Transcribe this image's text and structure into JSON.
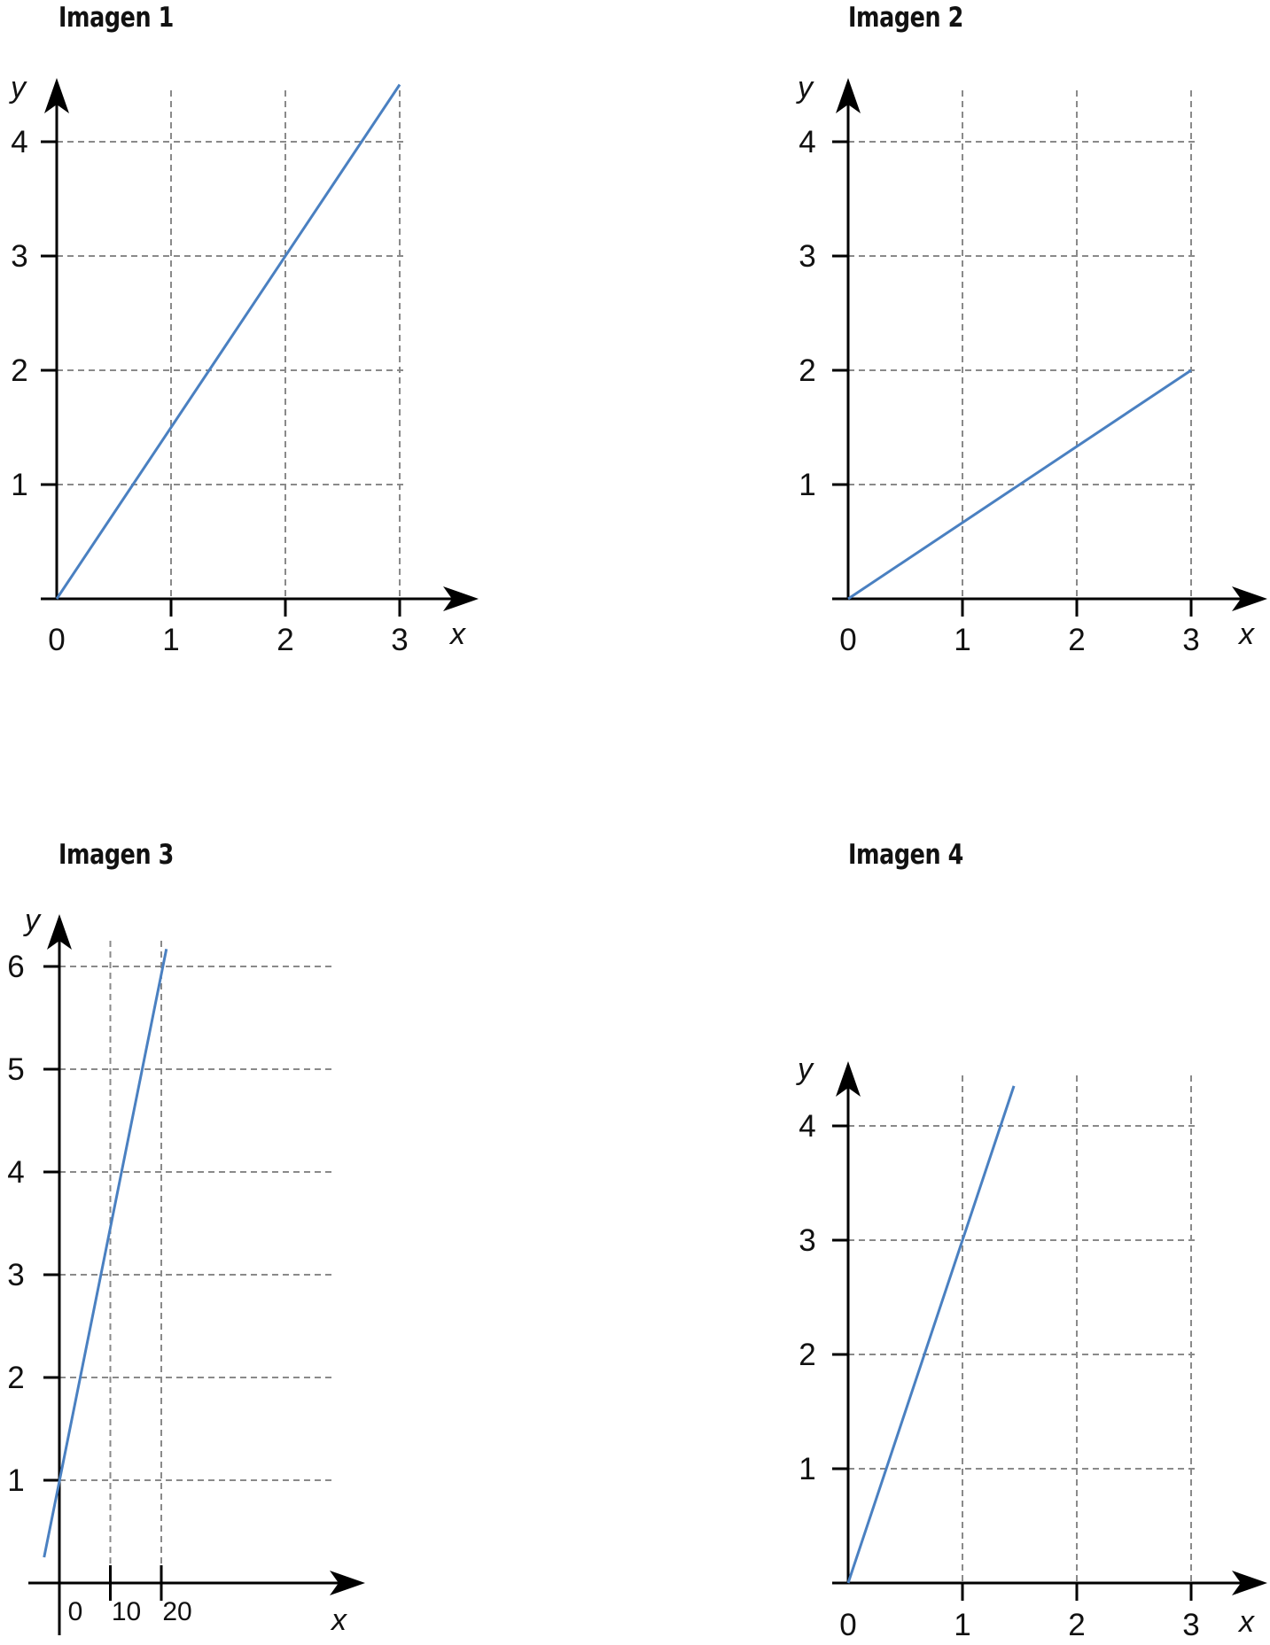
{
  "chart_data": [
    {
      "type": "line",
      "title": "Imagen 1",
      "xlabel": "x",
      "ylabel": "y",
      "xlim": [
        0,
        3
      ],
      "ylim": [
        0,
        4
      ],
      "x_ticks": [
        0,
        1,
        2,
        3
      ],
      "y_ticks": [
        1,
        2,
        3,
        4
      ],
      "x_tick_labels": [
        "0",
        "1",
        "2",
        "3"
      ],
      "y_tick_labels": [
        "1",
        "2",
        "3",
        "4"
      ],
      "grid": true,
      "series": [
        {
          "points": [
            {
              "x": 0,
              "y": 0
            },
            {
              "x": 3,
              "y": 4.5
            }
          ]
        }
      ],
      "line_color": "#4a80c1"
    },
    {
      "type": "line",
      "title": "Imagen 2",
      "xlabel": "x",
      "ylabel": "y",
      "xlim": [
        0,
        3
      ],
      "ylim": [
        0,
        4
      ],
      "x_ticks": [
        0,
        1,
        2,
        3
      ],
      "y_ticks": [
        1,
        2,
        3,
        4
      ],
      "x_tick_labels": [
        "0",
        "1",
        "2",
        "3"
      ],
      "y_tick_labels": [
        "1",
        "2",
        "3",
        "4"
      ],
      "grid": true,
      "series": [
        {
          "points": [
            {
              "x": 0,
              "y": 0
            },
            {
              "x": 3,
              "y": 2
            }
          ]
        }
      ],
      "line_color": "#4a80c1"
    },
    {
      "type": "line",
      "title": "Imagen 3",
      "xlabel": "x",
      "ylabel": "y",
      "xlim": [
        0,
        20
      ],
      "ylim": [
        0,
        6
      ],
      "x_ticks": [
        0,
        10,
        20
      ],
      "y_ticks": [
        1,
        2,
        3,
        4,
        5,
        6
      ],
      "x_tick_labels": [
        "0",
        "10",
        "20"
      ],
      "y_tick_labels": [
        "1",
        "2",
        "3",
        "4",
        "5",
        "6"
      ],
      "grid": true,
      "series": [
        {
          "points": [
            {
              "x": -3,
              "y": 0.25
            },
            {
              "x": 21,
              "y": 6.17
            }
          ]
        }
      ],
      "line_color": "#4a80c1"
    },
    {
      "type": "line",
      "title": "Imagen 4",
      "xlabel": "x",
      "ylabel": "y",
      "xlim": [
        0,
        3
      ],
      "ylim": [
        0,
        4
      ],
      "x_ticks": [
        0,
        1,
        2,
        3
      ],
      "y_ticks": [
        1,
        2,
        3,
        4
      ],
      "x_tick_labels": [
        "0",
        "1",
        "2",
        "3"
      ],
      "y_tick_labels": [
        "1",
        "2",
        "3",
        "4"
      ],
      "grid": true,
      "series": [
        {
          "points": [
            {
              "x": 0,
              "y": 0
            },
            {
              "x": 1.45,
              "y": 4.35
            }
          ]
        }
      ],
      "line_color": "#4a80c1"
    }
  ]
}
